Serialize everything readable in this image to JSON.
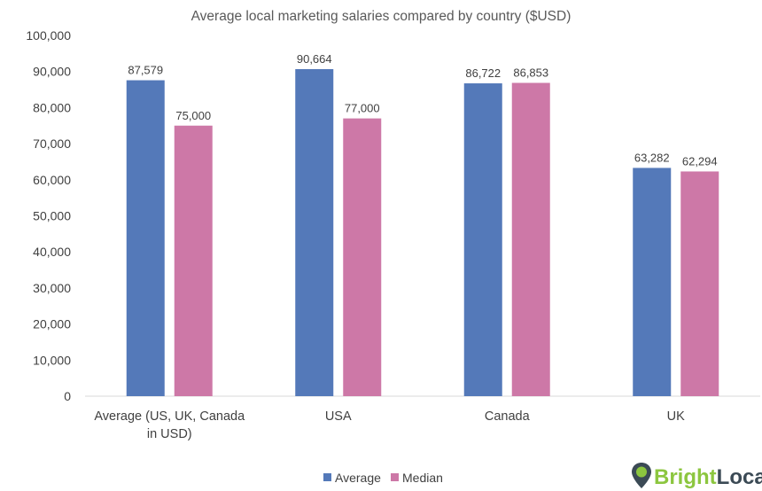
{
  "chart_data": {
    "type": "bar",
    "title": "Average local marketing salaries compared by country ($USD)",
    "categories": [
      [
        "Average (US, UK, Canada",
        "in USD)"
      ],
      [
        "USA"
      ],
      [
        "Canada"
      ],
      [
        "UK"
      ]
    ],
    "series": [
      {
        "name": "Average",
        "color": "#5479b9",
        "values": [
          87579,
          90664,
          86722,
          63282
        ],
        "labels": [
          "87,579",
          "90,664",
          "86,722",
          "63,282"
        ]
      },
      {
        "name": "Median",
        "color": "#cd78a7",
        "values": [
          75000,
          77000,
          86853,
          62294
        ],
        "labels": [
          "75,000",
          "77,000",
          "86,853",
          "62,294"
        ]
      }
    ],
    "ylim": [
      0,
      100000
    ],
    "yticks": [
      0,
      10000,
      20000,
      30000,
      40000,
      50000,
      60000,
      70000,
      80000,
      90000,
      100000
    ],
    "ytick_labels": [
      "0",
      "10,000",
      "20,000",
      "30,000",
      "40,000",
      "50,000",
      "60,000",
      "70,000",
      "80,000",
      "90,000",
      "100,000"
    ],
    "grid": false,
    "legend_position": "bottom-center",
    "xlabel": "",
    "ylabel": ""
  },
  "brand": {
    "name_part1": "Bright",
    "name_part2": "Local",
    "color_green": "#8cc63f",
    "color_dark": "#3b4a55",
    "icon": "map-pin-icon"
  }
}
